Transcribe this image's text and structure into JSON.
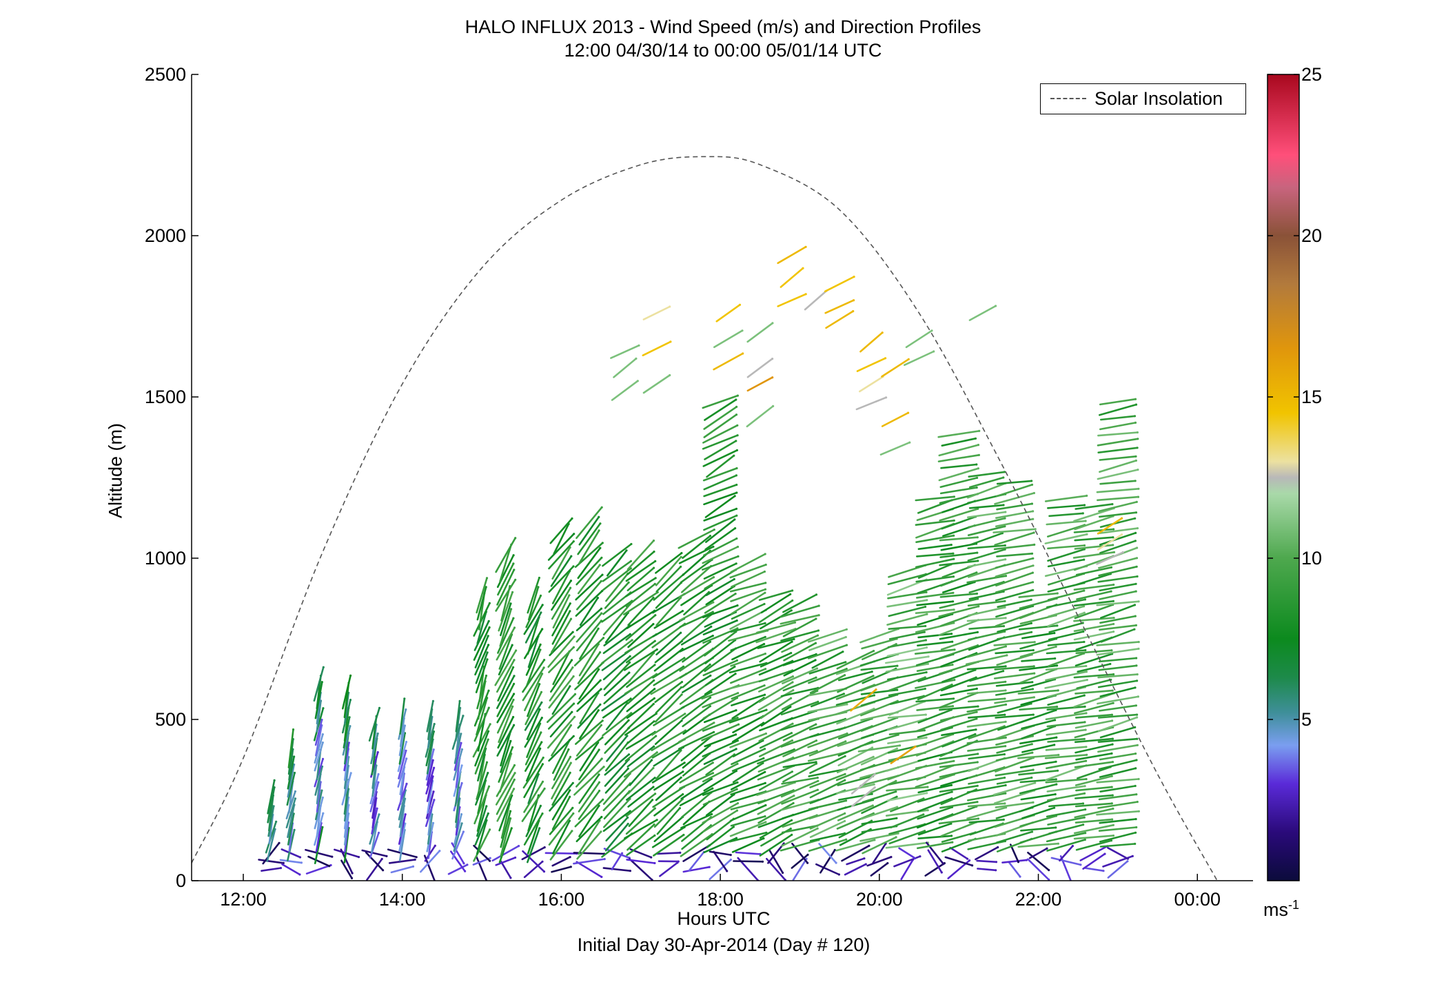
{
  "chart_data": {
    "type": "scatter",
    "title": "HALO INFLUX 2013 - Wind Speed (m/s) and Direction Profiles",
    "subtitle": "12:00 04/30/14 to 00:00 05/01/14  UTC",
    "xlabel": "Hours UTC",
    "xlabel2": "Initial Day 30-Apr-2014 (Day # 120)",
    "ylabel": "Altitude (m)",
    "xlim": [
      11.35,
      24.7
    ],
    "ylim": [
      0,
      2500
    ],
    "x_ticks": [
      {
        "value": 12,
        "label": "12:00"
      },
      {
        "value": 14,
        "label": "14:00"
      },
      {
        "value": 16,
        "label": "16:00"
      },
      {
        "value": 18,
        "label": "18:00"
      },
      {
        "value": 20,
        "label": "20:00"
      },
      {
        "value": 22,
        "label": "22:00"
      },
      {
        "value": 24,
        "label": "00:00"
      }
    ],
    "y_ticks": [
      {
        "value": 0,
        "label": "0"
      },
      {
        "value": 500,
        "label": "500"
      },
      {
        "value": 1000,
        "label": "1000"
      },
      {
        "value": 1500,
        "label": "1500"
      },
      {
        "value": 2000,
        "label": "2000"
      },
      {
        "value": 2500,
        "label": "2500"
      }
    ],
    "legend": {
      "entry": "Solar Insolation",
      "position": "top-right"
    },
    "solar_insolation": {
      "color": "#555555",
      "points": [
        [
          11.35,
          55
        ],
        [
          12.0,
          380
        ],
        [
          13.0,
          1020
        ],
        [
          14.0,
          1540
        ],
        [
          15.0,
          1900
        ],
        [
          16.0,
          2110
        ],
        [
          17.0,
          2220
        ],
        [
          17.8,
          2245
        ],
        [
          18.5,
          2220
        ],
        [
          19.5,
          2080
        ],
        [
          20.5,
          1760
        ],
        [
          21.5,
          1310
        ],
        [
          22.5,
          820
        ],
        [
          23.5,
          330
        ],
        [
          24.25,
          0
        ]
      ]
    },
    "colorbar": {
      "min": 0,
      "max": 25,
      "ticks": [
        {
          "value": 5,
          "label": "5"
        },
        {
          "value": 10,
          "label": "10"
        },
        {
          "value": 15,
          "label": "15"
        },
        {
          "value": 20,
          "label": "20"
        },
        {
          "value": 25,
          "label": "25"
        }
      ],
      "unit_label": "ms",
      "unit_exponent": "-1",
      "stops": [
        {
          "v": 0,
          "color": "#0b0b3b"
        },
        {
          "v": 1.5,
          "color": "#2a0a7a"
        },
        {
          "v": 3,
          "color": "#5a2ad8"
        },
        {
          "v": 4.2,
          "color": "#7a9ef0"
        },
        {
          "v": 5.2,
          "color": "#3f8f9a"
        },
        {
          "v": 6.3,
          "color": "#1d8a4a"
        },
        {
          "v": 7.5,
          "color": "#0c8a1e"
        },
        {
          "v": 10,
          "color": "#4ea84e"
        },
        {
          "v": 12,
          "color": "#a9d9a9"
        },
        {
          "v": 12.5,
          "color": "#b8b8b8"
        },
        {
          "v": 13,
          "color": "#ece1a0"
        },
        {
          "v": 14.5,
          "color": "#f1c400"
        },
        {
          "v": 16.5,
          "color": "#e0960c"
        },
        {
          "v": 18.5,
          "color": "#b27a3c"
        },
        {
          "v": 20,
          "color": "#8a5238"
        },
        {
          "v": 21.5,
          "color": "#c8647e"
        },
        {
          "v": 22.5,
          "color": "#ff4f7a"
        },
        {
          "v": 25,
          "color": "#a8081e"
        }
      ]
    },
    "profiles": [
      {
        "hour": 12.35,
        "top": 280,
        "speed": 7.5,
        "lean": 0.3
      },
      {
        "hour": 12.6,
        "top": 430,
        "speed": 7.0,
        "lean": 0.3
      },
      {
        "hour": 12.95,
        "top": 630,
        "speed": 6.5,
        "lean": 0.25
      },
      {
        "hour": 13.3,
        "top": 600,
        "speed": 6.5,
        "lean": 0.25
      },
      {
        "hour": 13.65,
        "top": 500,
        "speed": 6.0,
        "lean": 0.3
      },
      {
        "hour": 14.0,
        "top": 530,
        "speed": 6.0,
        "lean": 0.3
      },
      {
        "hour": 14.35,
        "top": 510,
        "speed": 6.0,
        "lean": 0.3
      },
      {
        "hour": 14.7,
        "top": 520,
        "speed": 6.5,
        "lean": 0.35
      },
      {
        "hour": 15.0,
        "top": 900,
        "speed": 8.0,
        "lean": 0.45
      },
      {
        "hour": 15.3,
        "top": 1020,
        "speed": 8.5,
        "lean": 0.55
      },
      {
        "hour": 15.65,
        "top": 900,
        "speed": 8.0,
        "lean": 0.6
      },
      {
        "hour": 16.0,
        "top": 1090,
        "speed": 8.5,
        "lean": 0.8
      },
      {
        "hour": 16.35,
        "top": 1130,
        "speed": 8.5,
        "lean": 0.9
      },
      {
        "hour": 16.7,
        "top": 1020,
        "speed": 8.0,
        "lean": 1.0
      },
      {
        "hour": 17.0,
        "top": 1020,
        "speed": 8.5,
        "lean": 1.1
      },
      {
        "hour": 17.35,
        "top": 1000,
        "speed": 8.5,
        "lean": 1.1
      },
      {
        "hour": 17.7,
        "top": 1080,
        "speed": 8.5,
        "lean": 1.2
      },
      {
        "hour": 18.0,
        "top": 1490,
        "speed": 8.5,
        "lean": 1.3
      },
      {
        "hour": 18.35,
        "top": 1000,
        "speed": 9.0,
        "lean": 1.4
      },
      {
        "hour": 18.7,
        "top": 900,
        "speed": 9.0,
        "lean": 1.4
      },
      {
        "hour": 19.0,
        "top": 880,
        "speed": 9.0,
        "lean": 1.5
      },
      {
        "hour": 19.35,
        "top": 760,
        "speed": 9.5,
        "lean": 1.5
      },
      {
        "hour": 19.7,
        "top": 700,
        "speed": 9.5,
        "lean": 1.5
      },
      {
        "hour": 20.0,
        "top": 760,
        "speed": 9.5,
        "lean": 1.55
      },
      {
        "hour": 20.35,
        "top": 960,
        "speed": 10.0,
        "lean": 1.6
      },
      {
        "hour": 20.7,
        "top": 1200,
        "speed": 9.0,
        "lean": 1.6
      },
      {
        "hour": 21.0,
        "top": 1400,
        "speed": 9.0,
        "lean": 1.6
      },
      {
        "hour": 21.35,
        "top": 1260,
        "speed": 9.5,
        "lean": 1.65
      },
      {
        "hour": 21.7,
        "top": 1250,
        "speed": 9.5,
        "lean": 1.65
      },
      {
        "hour": 22.0,
        "top": 900,
        "speed": 9.0,
        "lean": 1.65
      },
      {
        "hour": 22.35,
        "top": 1200,
        "speed": 9.5,
        "lean": 1.65
      },
      {
        "hour": 22.7,
        "top": 1160,
        "speed": 9.5,
        "lean": 1.65
      },
      {
        "hour": 23.0,
        "top": 1500,
        "speed": 9.5,
        "lean": 1.65
      }
    ],
    "upper_barbs": [
      {
        "hour": 16.8,
        "alt": 1640,
        "speed": 11.0
      },
      {
        "hour": 16.8,
        "alt": 1590,
        "speed": 11.0
      },
      {
        "hour": 16.8,
        "alt": 1520,
        "speed": 11.0
      },
      {
        "hour": 17.2,
        "alt": 1760,
        "speed": 13.0
      },
      {
        "hour": 17.2,
        "alt": 1650,
        "speed": 14.5
      },
      {
        "hour": 17.2,
        "alt": 1540,
        "speed": 11.0
      },
      {
        "hour": 18.1,
        "alt": 1760,
        "speed": 14.5
      },
      {
        "hour": 18.1,
        "alt": 1680,
        "speed": 11.0
      },
      {
        "hour": 18.1,
        "alt": 1610,
        "speed": 15.0
      },
      {
        "hour": 18.5,
        "alt": 1700,
        "speed": 11.0
      },
      {
        "hour": 18.5,
        "alt": 1590,
        "speed": 12.5
      },
      {
        "hour": 18.5,
        "alt": 1540,
        "speed": 16.5
      },
      {
        "hour": 18.5,
        "alt": 1440,
        "speed": 11.0
      },
      {
        "hour": 18.9,
        "alt": 1940,
        "speed": 15.0
      },
      {
        "hour": 18.9,
        "alt": 1870,
        "speed": 14.5
      },
      {
        "hour": 18.9,
        "alt": 1800,
        "speed": 14.5
      },
      {
        "hour": 19.2,
        "alt": 1800,
        "speed": 12.5
      },
      {
        "hour": 19.5,
        "alt": 1850,
        "speed": 14.5
      },
      {
        "hour": 19.5,
        "alt": 1780,
        "speed": 15.0
      },
      {
        "hour": 19.5,
        "alt": 1740,
        "speed": 15.0
      },
      {
        "hour": 19.9,
        "alt": 1670,
        "speed": 15.0
      },
      {
        "hour": 19.9,
        "alt": 1600,
        "speed": 14.5
      },
      {
        "hour": 19.9,
        "alt": 1540,
        "speed": 13.0
      },
      {
        "hour": 19.9,
        "alt": 1480,
        "speed": 12.5
      },
      {
        "hour": 20.2,
        "alt": 1590,
        "speed": 15.0
      },
      {
        "hour": 20.2,
        "alt": 1430,
        "speed": 15.0
      },
      {
        "hour": 20.2,
        "alt": 1340,
        "speed": 11.0
      },
      {
        "hour": 20.5,
        "alt": 1680,
        "speed": 11.0
      },
      {
        "hour": 20.5,
        "alt": 1620,
        "speed": 11.0
      },
      {
        "hour": 21.3,
        "alt": 1760,
        "speed": 11.0
      },
      {
        "hour": 22.9,
        "alt": 1100,
        "speed": 15.0
      },
      {
        "hour": 22.9,
        "alt": 1050,
        "speed": 13.0
      },
      {
        "hour": 22.9,
        "alt": 1000,
        "speed": 12.5
      },
      {
        "hour": 19.8,
        "alt": 560,
        "speed": 15.5
      },
      {
        "hour": 20.3,
        "alt": 390,
        "speed": 16.0
      },
      {
        "hour": 19.8,
        "alt": 300,
        "speed": 12.5
      },
      {
        "hour": 19.8,
        "alt": 260,
        "speed": 12.5
      }
    ]
  }
}
